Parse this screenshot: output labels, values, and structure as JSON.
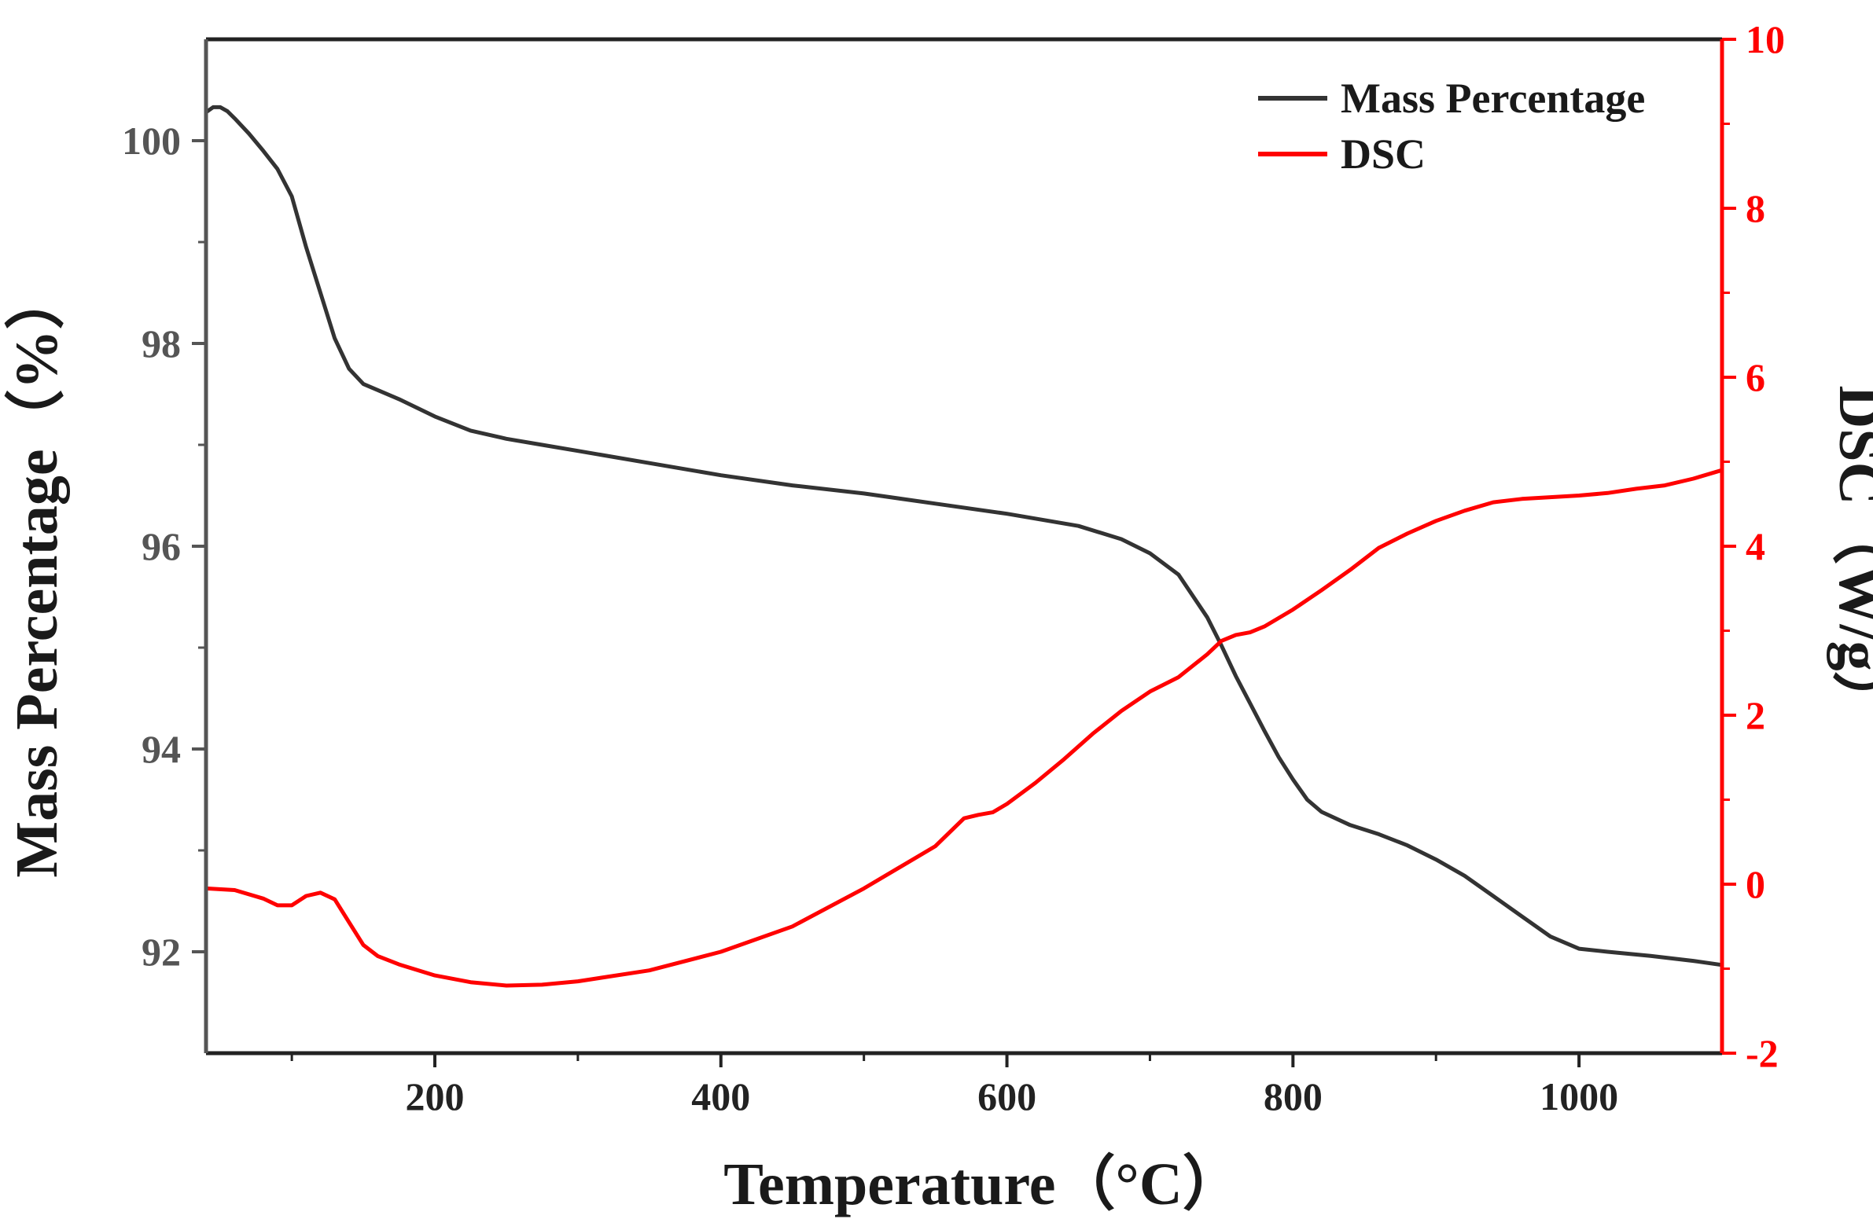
{
  "chart_data": {
    "type": "line",
    "x_axis": {
      "label": "Temperature（°C）",
      "range": [
        40,
        1100
      ],
      "major_ticks": [
        200,
        400,
        600,
        800,
        1000
      ],
      "minor_ticks": [
        100,
        300,
        500,
        700,
        900
      ],
      "tick_labels": [
        "200",
        "400",
        "600",
        "800",
        "1000"
      ]
    },
    "y_axis_left": {
      "label": "Mass Percentage（%）",
      "range": [
        91.0,
        101.0
      ],
      "major_ticks": [
        92,
        94,
        96,
        98,
        100
      ],
      "minor_ticks": [
        93,
        95,
        97,
        99
      ],
      "tick_labels": [
        "92",
        "94",
        "96",
        "98",
        "100"
      ],
      "color": "#555555"
    },
    "y_axis_right": {
      "label": "DSC（W/g）",
      "range": [
        -2,
        10
      ],
      "major_ticks": [
        -2,
        0,
        2,
        4,
        6,
        8,
        10
      ],
      "minor_ticks": [
        -1,
        1,
        3,
        5,
        7,
        9
      ],
      "tick_labels": [
        "-2",
        "0",
        "2",
        "4",
        "6",
        "8",
        "10"
      ],
      "color": "#ff0000"
    },
    "legend": {
      "position": "top-right",
      "entries": [
        "Mass Percentage",
        "DSC"
      ]
    },
    "series": [
      {
        "name": "Mass Percentage",
        "axis": "left",
        "color": "#333333",
        "x": [
          40,
          45,
          50,
          55,
          60,
          70,
          80,
          90,
          100,
          110,
          120,
          130,
          140,
          150,
          175,
          200,
          225,
          250,
          275,
          300,
          350,
          400,
          450,
          500,
          550,
          600,
          650,
          680,
          700,
          720,
          740,
          750,
          760,
          770,
          780,
          790,
          800,
          810,
          820,
          840,
          860,
          880,
          900,
          920,
          940,
          960,
          980,
          1000,
          1020,
          1050,
          1080,
          1100
        ],
        "values": [
          100.28,
          100.33,
          100.33,
          100.29,
          100.22,
          100.07,
          99.9,
          99.72,
          99.45,
          98.95,
          98.5,
          98.05,
          97.75,
          97.6,
          97.45,
          97.28,
          97.14,
          97.06,
          97.0,
          96.94,
          96.82,
          96.7,
          96.6,
          96.52,
          96.42,
          96.32,
          96.2,
          96.07,
          95.93,
          95.72,
          95.3,
          95.02,
          94.72,
          94.45,
          94.18,
          93.92,
          93.7,
          93.5,
          93.38,
          93.25,
          93.16,
          93.05,
          92.91,
          92.75,
          92.55,
          92.35,
          92.15,
          92.03,
          92.0,
          91.96,
          91.91,
          91.87
        ]
      },
      {
        "name": "DSC",
        "axis": "right",
        "color": "#ff0000",
        "x": [
          40,
          60,
          80,
          90,
          100,
          110,
          120,
          130,
          140,
          150,
          160,
          175,
          200,
          225,
          250,
          275,
          300,
          350,
          400,
          450,
          500,
          550,
          570,
          580,
          590,
          600,
          620,
          640,
          660,
          680,
          700,
          720,
          740,
          750,
          760,
          770,
          780,
          800,
          820,
          840,
          860,
          880,
          900,
          920,
          940,
          960,
          980,
          1000,
          1020,
          1040,
          1060,
          1080,
          1100
        ],
        "values": [
          -0.05,
          -0.07,
          -0.17,
          -0.25,
          -0.25,
          -0.14,
          -0.1,
          -0.18,
          -0.45,
          -0.72,
          -0.85,
          -0.95,
          -1.08,
          -1.16,
          -1.2,
          -1.19,
          -1.15,
          -1.02,
          -0.8,
          -0.5,
          -0.05,
          0.45,
          0.78,
          0.82,
          0.85,
          0.95,
          1.2,
          1.48,
          1.78,
          2.05,
          2.28,
          2.45,
          2.72,
          2.88,
          2.95,
          2.98,
          3.05,
          3.25,
          3.48,
          3.72,
          3.98,
          4.15,
          4.3,
          4.42,
          4.52,
          4.56,
          4.58,
          4.6,
          4.63,
          4.68,
          4.72,
          4.8,
          4.9
        ]
      }
    ]
  }
}
